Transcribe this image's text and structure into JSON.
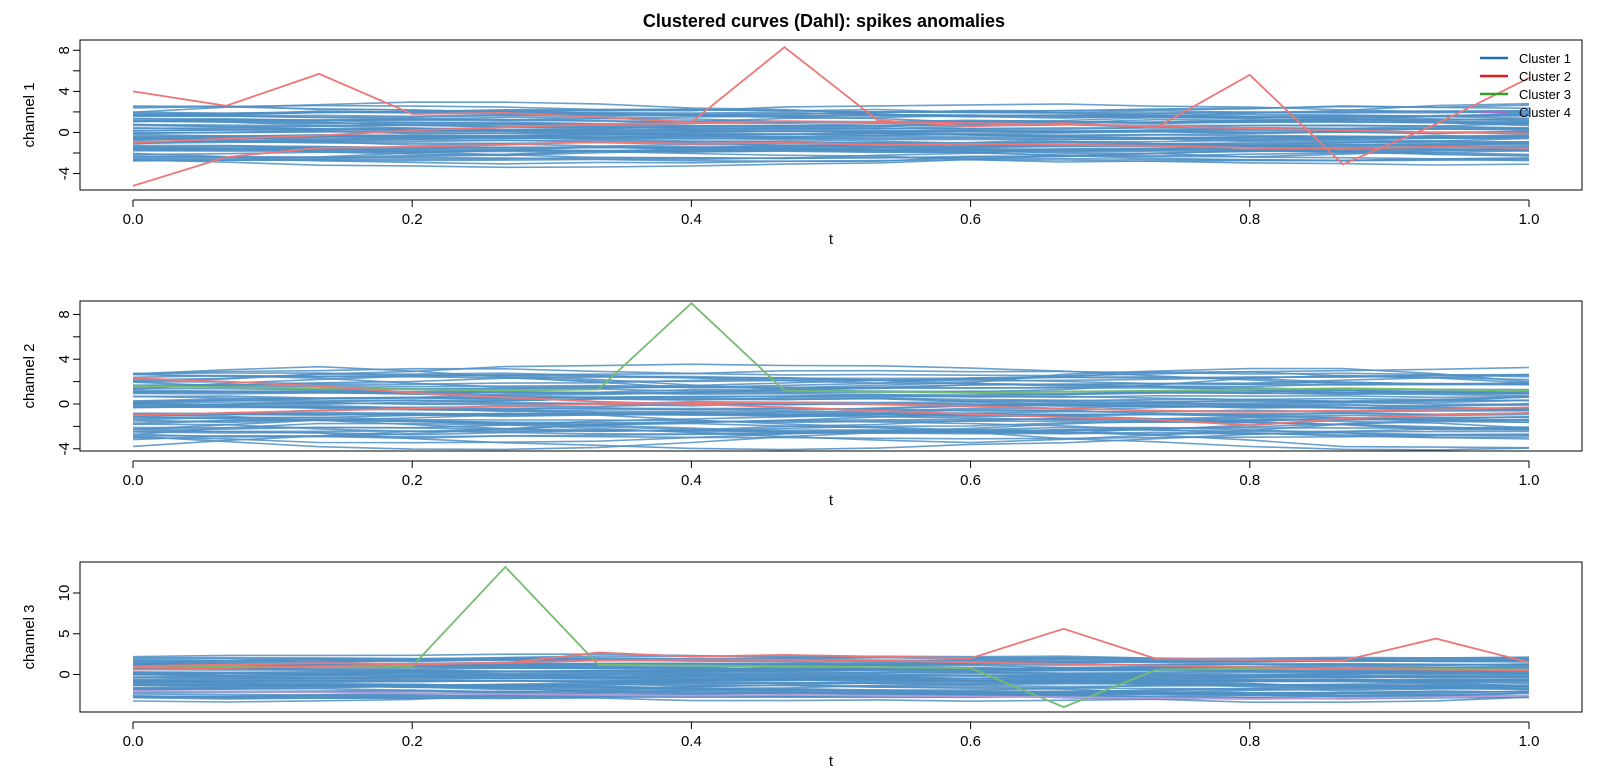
{
  "chart_data": {
    "type": "line",
    "title": "Clustered curves (Dahl): spikes anomalies",
    "legend": {
      "placement": "top-right",
      "entries": [
        {
          "label": "Cluster 1",
          "color": "#1f6fb4"
        },
        {
          "label": "Cluster 2",
          "color": "#e41a1c"
        },
        {
          "label": "Cluster 3",
          "color": "#33a02c"
        },
        {
          "label": "Cluster 4",
          "color": "#9b6fc9"
        }
      ]
    },
    "cluster_colors": {
      "1": "#4f8fc4",
      "2": "#ec7777",
      "3": "#74bc6f",
      "4": "#b79ad8"
    },
    "x_grid": [
      0.0,
      0.0667,
      0.1333,
      0.2,
      0.2667,
      0.3333,
      0.4,
      0.4667,
      0.5333,
      0.6,
      0.6667,
      0.7333,
      0.8,
      0.8667,
      0.9333,
      1.0
    ],
    "panels": [
      {
        "ylabel": "channel 1",
        "xlabel": "t",
        "xlim": [
          0,
          1
        ],
        "ylim": [
          -5.6,
          9.0
        ],
        "xticks": [
          "0.0",
          "0.2",
          "0.4",
          "0.6",
          "0.8",
          "1.0"
        ],
        "yticks": [
          {
            "value": -4,
            "label": "-4"
          },
          {
            "value": 0,
            "label": "0"
          },
          {
            "value": 4,
            "label": "4"
          },
          {
            "value": 8,
            "label": "8"
          }
        ],
        "minor_yticks": [
          -2,
          2,
          6
        ],
        "background": {
          "cluster": 1,
          "count": 60,
          "min": -3.2,
          "max": 2.8,
          "amplitude": 0.8
        },
        "series": [
          {
            "cluster": 2,
            "values": [
              4.0,
              2.6,
              5.7,
              1.8,
              1.9,
              1.5,
              1.0,
              8.3,
              1.2,
              0.6,
              0.9,
              0.5,
              5.6,
              -3.1,
              0.8,
              5.3
            ]
          },
          {
            "cluster": 2,
            "values": [
              -5.2,
              -2.4,
              -1.5,
              -1.4,
              -1.2,
              -0.9,
              -1.1,
              -1.0,
              -1.2,
              -1.1,
              -1.2,
              -1.3,
              -1.5,
              -1.6,
              -1.4,
              -1.5
            ]
          },
          {
            "cluster": 2,
            "values": [
              -1.0,
              -0.6,
              -0.3,
              0.2,
              0.5,
              0.8,
              0.9,
              1.1,
              1.0,
              0.9,
              0.8,
              0.6,
              0.4,
              0.2,
              0.0,
              -0.1
            ]
          }
        ]
      },
      {
        "ylabel": "channel 2",
        "xlabel": "t",
        "xlim": [
          0,
          1
        ],
        "ylim": [
          -4.2,
          9.2
        ],
        "xticks": [
          "0.0",
          "0.2",
          "0.4",
          "0.6",
          "0.8",
          "1.0"
        ],
        "yticks": [
          {
            "value": -4,
            "label": "-4"
          },
          {
            "value": 0,
            "label": "0"
          },
          {
            "value": 4,
            "label": "4"
          },
          {
            "value": 8,
            "label": "8"
          }
        ],
        "minor_yticks": [
          -2,
          2,
          6
        ],
        "background": {
          "cluster": 1,
          "count": 60,
          "min": -3.8,
          "max": 3.3,
          "amplitude": 1.1
        },
        "series": [
          {
            "cluster": 3,
            "values": [
              1.6,
              1.5,
              1.4,
              1.3,
              1.2,
              1.3,
              9.0,
              1.2,
              1.1,
              1.0,
              1.1,
              1.2,
              1.3,
              1.4,
              1.3,
              1.2
            ]
          },
          {
            "cluster": 2,
            "values": [
              2.3,
              2.0,
              1.6,
              1.0,
              0.6,
              0.2,
              0.0,
              -0.3,
              -0.6,
              -0.9,
              -1.2,
              -1.4,
              -1.9,
              -1.3,
              -1.0,
              -0.8
            ]
          },
          {
            "cluster": 2,
            "values": [
              -1.0,
              -0.8,
              -0.6,
              -0.4,
              -0.2,
              0.0,
              0.1,
              0.1,
              0.0,
              -0.2,
              -0.4,
              -0.6,
              -0.7,
              -0.6,
              -0.5,
              -0.3
            ]
          }
        ]
      },
      {
        "ylabel": "channel 3",
        "xlabel": "t",
        "xlim": [
          0,
          1
        ],
        "ylim": [
          -4.6,
          13.8
        ],
        "xticks": [
          "0.0",
          "0.2",
          "0.4",
          "0.6",
          "0.8",
          "1.0"
        ],
        "yticks": [
          {
            "value": 0,
            "label": "0"
          },
          {
            "value": 5,
            "label": "5"
          },
          {
            "value": 10,
            "label": "10"
          }
        ],
        "minor_yticks": [],
        "background": {
          "cluster": 1,
          "count": 60,
          "min": -3.4,
          "max": 2.5,
          "amplitude": 0.8
        },
        "series": [
          {
            "cluster": 3,
            "values": [
              0.9,
              1.0,
              0.9,
              1.0,
              13.2,
              1.2,
              1.1,
              1.0,
              0.9,
              0.8,
              -4.0,
              0.6,
              0.7,
              0.8,
              0.7,
              0.6
            ]
          },
          {
            "cluster": 2,
            "values": [
              1.0,
              1.2,
              1.4,
              1.3,
              1.4,
              2.7,
              2.2,
              2.4,
              2.2,
              2.0,
              5.6,
              1.9,
              1.8,
              1.7,
              4.4,
              1.5
            ]
          },
          {
            "cluster": 2,
            "values": [
              0.6,
              0.8,
              1.0,
              1.2,
              1.5,
              1.7,
              1.8,
              1.8,
              1.7,
              1.5,
              1.3,
              1.1,
              0.9,
              0.7,
              0.6,
              0.5
            ]
          },
          {
            "cluster": 4,
            "values": [
              -2.0,
              -2.1,
              -2.2,
              -2.3,
              -2.4,
              -2.5,
              -2.6,
              -2.5,
              -2.6,
              -2.7,
              -2.8,
              -2.9,
              -3.0,
              -2.9,
              -2.8,
              -2.6
            ]
          }
        ]
      }
    ]
  }
}
